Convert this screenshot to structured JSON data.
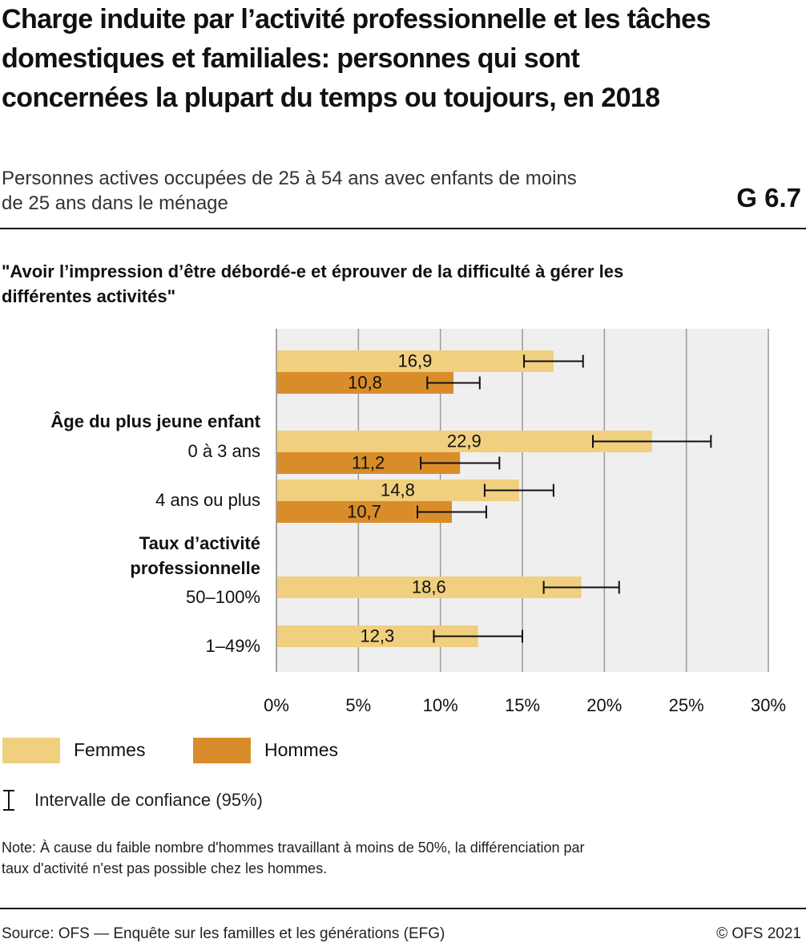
{
  "chart_data": {
    "type": "bar",
    "orientation": "horizontal",
    "title": "Charge induite par l’activité professionnelle et les tâches domestiques et familiales: personnes qui sont concernées la plupart du temps ou toujours, en 2018",
    "subtitle": "Personnes actives occupées de 25 à 54 ans avec enfants de moins de 25 ans dans le ménage",
    "chart_id": "G 6.7",
    "question": "\"Avoir l’impression d’être débordé-e et éprouver de la difficulté à gérer les différentes activités\"",
    "group_labels": [
      "Âge du plus jeune enfant",
      "Taux d’activité professionnelle"
    ],
    "categories": [
      null,
      "0 à 3 ans",
      "4 ans ou plus",
      "50–100%",
      "1–49%"
    ],
    "series": [
      {
        "name": "Femmes",
        "color": "#f0cf7e",
        "values": [
          16.9,
          22.9,
          14.8,
          18.6,
          12.3
        ],
        "value_labels": [
          "16,9",
          "22,9",
          "14,8",
          "18,6",
          "12,3"
        ],
        "errors": [
          1.8,
          3.6,
          2.1,
          2.3,
          2.7
        ]
      },
      {
        "name": "Hommes",
        "color": "#d98d2a",
        "values": [
          10.8,
          11.2,
          10.7,
          null,
          null
        ],
        "value_labels": [
          "10,8",
          "11,2",
          "10,7",
          null,
          null
        ],
        "errors": [
          1.6,
          2.4,
          2.1,
          null,
          null
        ]
      }
    ],
    "xlim": [
      0,
      30
    ],
    "xticks": [
      {
        "value": 0,
        "label": "0%"
      },
      {
        "value": 5,
        "label": "5%"
      },
      {
        "value": 10,
        "label": "10%"
      },
      {
        "value": 15,
        "label": "15%"
      },
      {
        "value": 20,
        "label": "20%"
      },
      {
        "value": 25,
        "label": "25%"
      },
      {
        "value": 30,
        "label": "30%"
      }
    ],
    "grid": true,
    "error_legend": "Intervalle de confiance (95%)",
    "note": "Note: À cause du faible nombre d'hommes travaillant à moins de 50%, la différenciation par taux d'activité n'est pas possible chez les hommes.",
    "source": "Source: OFS — Enquête sur les familles et les générations (EFG)",
    "copyright": "© OFS 2021"
  }
}
